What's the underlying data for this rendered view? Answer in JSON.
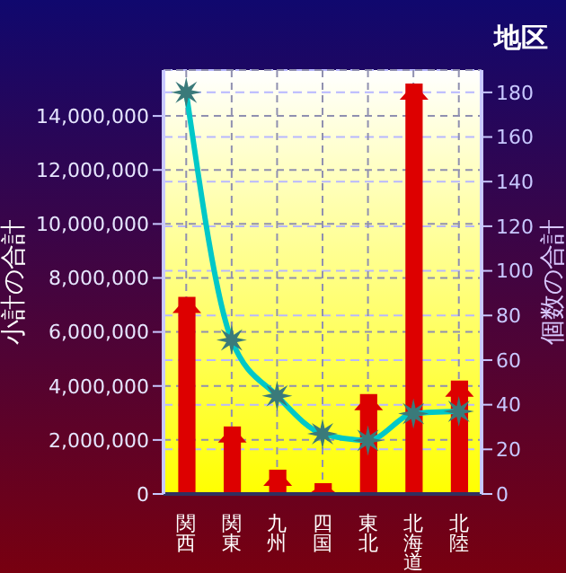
{
  "chart_data": {
    "type": "bar",
    "title": "地区",
    "ylabel": "小計の合計",
    "y2label": "個数の合計",
    "categories": [
      "関西",
      "関東",
      "九州",
      "四国",
      "東北",
      "北海道",
      "北陸"
    ],
    "series": [
      {
        "color": "#dd0000",
        "values": [
          7300000,
          2500000,
          900000,
          400000,
          3700000,
          15200000,
          4200000
        ]
      },
      {
        "type": "line",
        "axis": "y2",
        "color": "#00c8c8",
        "marker": "star",
        "values": [
          180,
          69,
          44,
          27,
          24,
          36,
          37
        ]
      }
    ],
    "ylim": [
      0,
      15700000
    ],
    "yticks": [
      {
        "value": 0,
        "label": "0"
      },
      {
        "value": 2000000,
        "label": "2,000,000"
      },
      {
        "value": 4000000,
        "label": "4,000,000"
      },
      {
        "value": 6000000,
        "label": "6,000,000"
      },
      {
        "value": 8000000,
        "label": "8,000,000"
      },
      {
        "value": 10000000,
        "label": "10,000,000"
      },
      {
        "value": 12000000,
        "label": "12,000,000"
      },
      {
        "value": 14000000,
        "label": "14,000,000"
      }
    ],
    "y2lim": [
      0,
      190
    ],
    "y2ticks": [
      0,
      20,
      40,
      60,
      80,
      100,
      120,
      140,
      160,
      180
    ],
    "grid": true,
    "legend": false
  }
}
